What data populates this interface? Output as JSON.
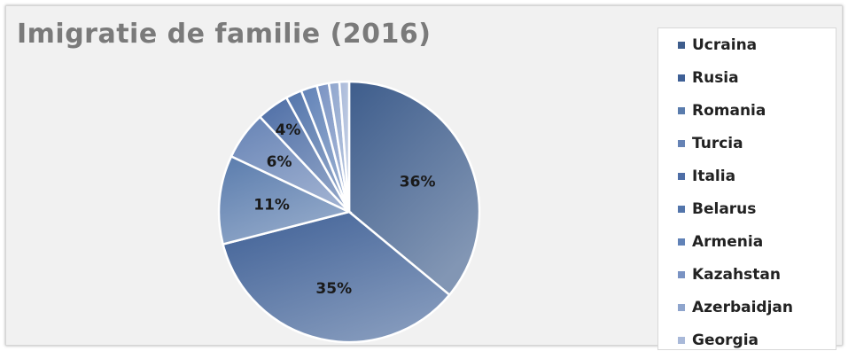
{
  "chart_data": {
    "type": "pie",
    "title": "Imigratie de familie (2016)",
    "legend_position": "right",
    "categories": [
      "Ucraina",
      "Rusia",
      "Romania",
      "Turcia",
      "Italia",
      "Belarus",
      "Armenia",
      "Kazahstan",
      "Azerbaidjan",
      "Georgia"
    ],
    "values": [
      36,
      35,
      11,
      6,
      4,
      2,
      2,
      1.5,
      1.3,
      1.2
    ],
    "data_labels": [
      "36%",
      "35%",
      "11%",
      "6%",
      "4%",
      "",
      "",
      "",
      "",
      ""
    ],
    "colors": [
      "#3e5d8c",
      "#3f6096",
      "#5a7cad",
      "#6683b5",
      "#4e6ea6",
      "#5375ab",
      "#6182b7",
      "#7a93c3",
      "#8fa5cd",
      "#a9b9d9"
    ]
  }
}
